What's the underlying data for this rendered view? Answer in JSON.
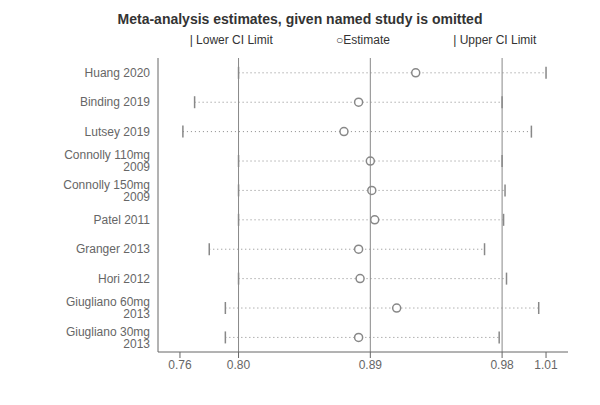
{
  "chart_data": {
    "type": "forest",
    "title": "Meta-analysis estimates, given named study is omitted",
    "annotations": [
      "| Lower CI Limit",
      "○Estimate",
      "| Upper CI Limit"
    ],
    "categories": [
      "Huang 2020",
      "Binding 2019",
      "Lutsey 2019",
      "Connolly 110mg 2009",
      "Connolly 150mg 2009",
      "Patel 2011",
      "Granger 2013",
      "Hori 2012",
      "Giugliano 60mg 2013",
      "Giugliano 30mg 2013"
    ],
    "values": [
      0.921,
      0.882,
      0.872,
      0.89,
      0.891,
      0.893,
      0.882,
      0.883,
      0.908,
      0.882
    ],
    "lower": [
      0.8,
      0.77,
      0.762,
      0.8,
      0.8,
      0.8,
      0.78,
      0.8,
      0.791,
      0.791
    ],
    "upper": [
      1.01,
      0.98,
      1.0,
      0.98,
      0.982,
      0.981,
      0.968,
      0.983,
      1.005,
      0.978
    ],
    "xlim": [
      0.745,
      1.025
    ],
    "xticks": [
      0.76,
      {
        "value": 0.8,
        "label": "0.80"
      },
      0.89,
      0.98,
      1.01
    ],
    "vlines": [
      0.8,
      0.89,
      0.98
    ],
    "color": "#888888"
  }
}
